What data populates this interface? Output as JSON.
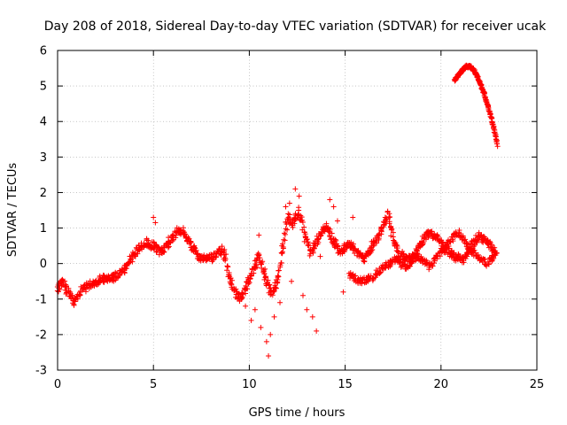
{
  "chart_data": {
    "type": "scatter",
    "title": "Day 208 of 2018, Sidereal Day-to-day VTEC variation (SDTVAR) for receiver ucak",
    "xlabel": "GPS time / hours",
    "ylabel": "SDTVAR / TECUs",
    "xlim": [
      0,
      25
    ],
    "ylim": [
      -3,
      6
    ],
    "xticks": [
      "0",
      "5",
      "10",
      "15",
      "20",
      "25"
    ],
    "yticks": [
      "-3",
      "-2",
      "-1",
      "0",
      "1",
      "2",
      "3",
      "4",
      "5",
      "6"
    ],
    "grid": true,
    "marker": "+",
    "color": "#ff0000",
    "series": [
      {
        "name": "SDTVAR",
        "track": [
          [
            0.0,
            -0.7
          ],
          [
            0.3,
            -0.5
          ],
          [
            0.6,
            -0.9
          ],
          [
            0.9,
            -1.1
          ],
          [
            1.2,
            -0.8
          ],
          [
            1.6,
            -0.6
          ],
          [
            2.0,
            -0.5
          ],
          [
            2.5,
            -0.4
          ],
          [
            3.0,
            -0.4
          ],
          [
            3.4,
            -0.2
          ],
          [
            3.8,
            0.1
          ],
          [
            4.2,
            0.4
          ],
          [
            4.6,
            0.6
          ],
          [
            5.0,
            0.5
          ],
          [
            5.4,
            0.3
          ],
          [
            5.8,
            0.6
          ],
          [
            6.2,
            0.9
          ],
          [
            6.6,
            0.9
          ],
          [
            7.0,
            0.5
          ],
          [
            7.4,
            0.2
          ],
          [
            7.8,
            0.1
          ],
          [
            8.2,
            0.2
          ],
          [
            8.6,
            0.4
          ],
          [
            8.8,
            0.0
          ],
          [
            9.0,
            -0.5
          ],
          [
            9.5,
            -1.0
          ],
          [
            9.9,
            -0.6
          ],
          [
            10.2,
            -0.2
          ],
          [
            10.5,
            0.2
          ],
          [
            10.8,
            -0.3
          ],
          [
            11.2,
            -0.9
          ],
          [
            11.5,
            -0.4
          ],
          [
            11.8,
            0.6
          ],
          [
            12.0,
            1.3
          ],
          [
            12.3,
            1.1
          ],
          [
            12.6,
            1.5
          ],
          [
            12.9,
            0.8
          ],
          [
            13.2,
            0.3
          ],
          [
            13.6,
            0.7
          ],
          [
            14.0,
            1.1
          ],
          [
            14.4,
            0.6
          ],
          [
            14.8,
            0.3
          ],
          [
            15.2,
            0.6
          ],
          [
            15.6,
            0.3
          ],
          [
            16.0,
            0.1
          ],
          [
            16.4,
            0.5
          ],
          [
            16.8,
            0.8
          ],
          [
            17.2,
            1.4
          ],
          [
            17.5,
            0.7
          ],
          [
            17.8,
            0.3
          ],
          [
            18.2,
            0.1
          ],
          [
            18.6,
            0.2
          ],
          [
            19.0,
            0.6
          ],
          [
            19.4,
            0.9
          ],
          [
            19.8,
            0.7
          ],
          [
            20.2,
            0.4
          ],
          [
            20.7,
            0.2
          ],
          [
            21.2,
            0.1
          ],
          [
            21.6,
            0.5
          ],
          [
            22.0,
            0.8
          ],
          [
            22.4,
            0.6
          ],
          [
            22.9,
            0.3
          ]
        ],
        "secondary_track": [
          [
            15.2,
            -0.3
          ],
          [
            15.8,
            -0.5
          ],
          [
            16.4,
            -0.4
          ],
          [
            17.0,
            -0.1
          ],
          [
            17.6,
            0.1
          ],
          [
            18.2,
            -0.1
          ],
          [
            18.8,
            0.2
          ],
          [
            19.4,
            -0.1
          ],
          [
            19.9,
            0.3
          ],
          [
            20.4,
            0.6
          ],
          [
            20.9,
            0.9
          ],
          [
            21.4,
            0.5
          ],
          [
            21.9,
            0.2
          ],
          [
            22.4,
            0.0
          ],
          [
            22.9,
            0.3
          ]
        ],
        "upper_arc": [
          [
            20.7,
            5.15
          ],
          [
            20.9,
            5.3
          ],
          [
            21.1,
            5.45
          ],
          [
            21.3,
            5.55
          ],
          [
            21.5,
            5.55
          ],
          [
            21.7,
            5.45
          ],
          [
            21.9,
            5.25
          ],
          [
            22.1,
            5.0
          ],
          [
            22.3,
            4.7
          ],
          [
            22.5,
            4.35
          ],
          [
            22.7,
            3.95
          ],
          [
            22.85,
            3.6
          ],
          [
            22.95,
            3.3
          ]
        ],
        "scattered_points": [
          [
            5.0,
            1.3
          ],
          [
            5.1,
            1.15
          ],
          [
            9.8,
            -1.2
          ],
          [
            10.1,
            -1.6
          ],
          [
            10.3,
            -1.3
          ],
          [
            10.5,
            0.8
          ],
          [
            10.6,
            -1.8
          ],
          [
            10.9,
            -2.2
          ],
          [
            11.0,
            -2.6
          ],
          [
            11.1,
            -2.0
          ],
          [
            11.3,
            -1.5
          ],
          [
            11.6,
            -1.1
          ],
          [
            11.9,
            1.6
          ],
          [
            12.1,
            1.7
          ],
          [
            12.4,
            2.1
          ],
          [
            12.6,
            1.9
          ],
          [
            12.8,
            -0.9
          ],
          [
            13.0,
            -1.3
          ],
          [
            13.3,
            -1.5
          ],
          [
            13.5,
            -1.9
          ],
          [
            13.7,
            0.2
          ],
          [
            14.2,
            1.8
          ],
          [
            14.4,
            1.6
          ],
          [
            14.6,
            1.2
          ],
          [
            14.9,
            -0.8
          ],
          [
            15.4,
            1.3
          ],
          [
            11.7,
            0.5
          ],
          [
            12.2,
            -0.5
          ]
        ]
      }
    ]
  }
}
